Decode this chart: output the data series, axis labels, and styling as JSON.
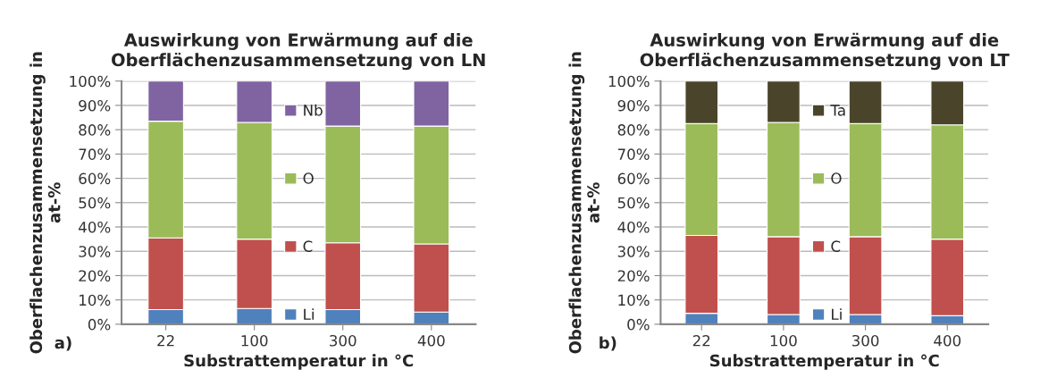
{
  "chart_data": [
    {
      "type": "bar",
      "stacked": true,
      "title": "Auswirkung von Erwärmung auf die\nOberflächenzusammensetzung von LN",
      "xlabel": "Substrattemperatur in °C",
      "ylabel": "Oberflachenzusammensetzung in\nat-%",
      "categories": [
        "22",
        "100",
        "300",
        "400"
      ],
      "series": [
        {
          "name": "Li",
          "color": "#4f81bd",
          "values": [
            6,
            6.5,
            6,
            5
          ]
        },
        {
          "name": "C",
          "color": "#c0504d",
          "values": [
            29.5,
            28.5,
            27.5,
            28
          ]
        },
        {
          "name": "O",
          "color": "#9bbb59",
          "values": [
            48,
            48,
            48,
            48.5
          ]
        },
        {
          "name": "Nb",
          "color": "#8064a2",
          "values": [
            16.5,
            17,
            18.5,
            18.5
          ]
        }
      ],
      "ylim": [
        0,
        100
      ],
      "yticks": [
        {
          "value": 0,
          "label": "0%"
        },
        {
          "value": 10,
          "label": "10%"
        },
        {
          "value": 20,
          "label": "20%"
        },
        {
          "value": 30,
          "label": "30%"
        },
        {
          "value": 40,
          "label": "40%"
        },
        {
          "value": 50,
          "label": "50%"
        },
        {
          "value": 60,
          "label": "60%"
        },
        {
          "value": 70,
          "label": "70%"
        },
        {
          "value": 80,
          "label": "80%"
        },
        {
          "value": 90,
          "label": "90%"
        },
        {
          "value": 100,
          "label": "100%"
        }
      ],
      "grid": "y",
      "legend": "center",
      "annotations": [
        "a)"
      ]
    },
    {
      "type": "bar",
      "stacked": true,
      "title": "Auswirkung von Erwärmung auf die\nOberflächenzusammensetzung von LT",
      "xlabel": "Substrattemperatur in °C",
      "ylabel": "Oberflachenzusammensetzung in\nat-%",
      "categories": [
        "22",
        "100",
        "300",
        "400"
      ],
      "series": [
        {
          "name": "Li",
          "color": "#4f81bd",
          "values": [
            4.5,
            4,
            4,
            3.5
          ]
        },
        {
          "name": "C",
          "color": "#c0504d",
          "values": [
            32,
            32,
            32,
            31.5
          ]
        },
        {
          "name": "O",
          "color": "#9bbb59",
          "values": [
            46,
            47,
            46.5,
            47
          ]
        },
        {
          "name": "Ta",
          "color": "#4a452a",
          "values": [
            17.5,
            17,
            17.5,
            18
          ]
        }
      ],
      "ylim": [
        0,
        100
      ],
      "yticks": [
        {
          "value": 0,
          "label": "0%"
        },
        {
          "value": 10,
          "label": "10%"
        },
        {
          "value": 20,
          "label": "20%"
        },
        {
          "value": 30,
          "label": "30%"
        },
        {
          "value": 40,
          "label": "40%"
        },
        {
          "value": 50,
          "label": "50%"
        },
        {
          "value": 60,
          "label": "60%"
        },
        {
          "value": 70,
          "label": "70%"
        },
        {
          "value": 80,
          "label": "80%"
        },
        {
          "value": 90,
          "label": "90%"
        },
        {
          "value": 100,
          "label": "100%"
        }
      ],
      "grid": "y",
      "legend": "center",
      "annotations": [
        "b)"
      ]
    }
  ]
}
